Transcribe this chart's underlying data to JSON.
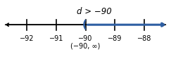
{
  "title": "d > −90",
  "interval_notation": "(−90, ∞)",
  "xlim": [
    -92.8,
    -87.2
  ],
  "ticks": [
    -92,
    -91,
    -90,
    -89,
    -88
  ],
  "tick_labels": [
    "−92",
    "−91",
    "−90",
    "−89",
    "−88"
  ],
  "open_point": -90,
  "line_color": "#2e5fa3",
  "axis_color": "#000000",
  "title_fontsize": 8.5,
  "label_fontsize": 7,
  "notation_fontsize": 7,
  "figsize": [
    2.43,
    0.84
  ],
  "dpi": 100
}
